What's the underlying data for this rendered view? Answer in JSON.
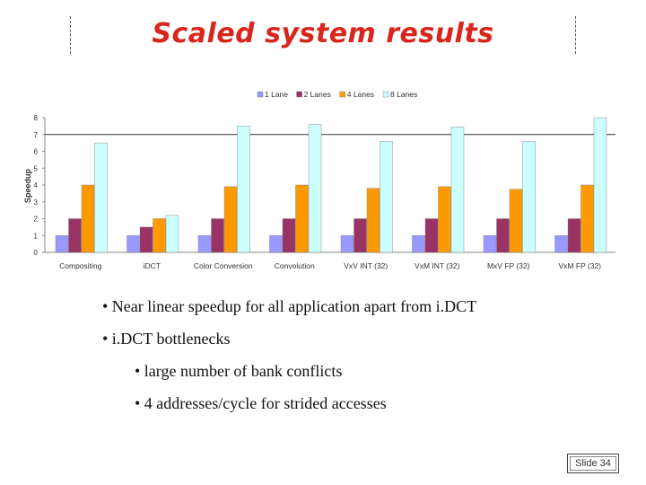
{
  "slide": {
    "title": "Scaled system results",
    "bullets": [
      "• Near linear speedup for all application apart from i.DCT",
      "• i.DCT bottlenecks"
    ],
    "sub_bullets": [
      "• large number of bank conflicts",
      "• 4 addresses/cycle for strided accesses"
    ],
    "slide_number": "Slide 34"
  },
  "chart_data": {
    "type": "bar",
    "title": "",
    "xlabel": "",
    "ylabel": "Speedup",
    "ylim": [
      0,
      8
    ],
    "yticks": [
      "0",
      "1",
      "2",
      "3",
      "4",
      "5",
      "6",
      "7",
      "8"
    ],
    "reference_line": 7,
    "grid": false,
    "legend_position": "top",
    "categories": [
      "Compositing",
      "iDCT",
      "Color Conversion",
      "Convolution",
      "VxV INT (32)",
      "VxM INT (32)",
      "MxV FP (32)",
      "VxM FP (32)"
    ],
    "series": [
      {
        "name": "1 Lane",
        "color": "#9999ff",
        "values": [
          1.0,
          1.0,
          1.0,
          1.0,
          1.0,
          1.0,
          1.0,
          1.0
        ]
      },
      {
        "name": "2 Lanes",
        "color": "#993366",
        "values": [
          2.0,
          1.5,
          2.0,
          2.0,
          2.0,
          2.0,
          2.0,
          2.0
        ]
      },
      {
        "name": "4 Lanes",
        "color": "#ff9900",
        "values": [
          4.0,
          2.0,
          3.9,
          4.0,
          3.8,
          3.9,
          3.75,
          4.0
        ]
      },
      {
        "name": "8 Lanes",
        "color": "#ccffff",
        "values": [
          6.5,
          2.2,
          7.5,
          7.6,
          6.6,
          7.45,
          6.6,
          8.0
        ]
      }
    ]
  }
}
